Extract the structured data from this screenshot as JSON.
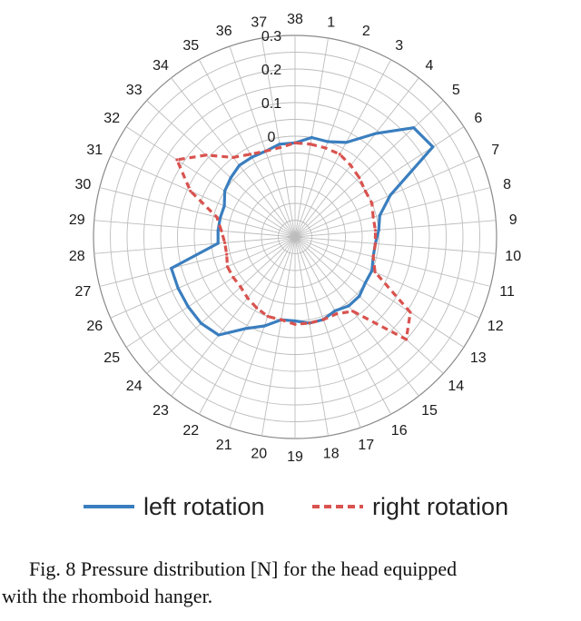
{
  "chart_data": {
    "type": "radar",
    "categories": [
      "1",
      "2",
      "3",
      "4",
      "5",
      "6",
      "7",
      "8",
      "9",
      "10",
      "11",
      "12",
      "13",
      "14",
      "15",
      "16",
      "17",
      "18",
      "19",
      "20",
      "21",
      "22",
      "23",
      "24",
      "25",
      "26",
      "27",
      "28",
      "29",
      "30",
      "31",
      "32",
      "33",
      "34",
      "35",
      "36",
      "37",
      "38"
    ],
    "radial_ticks": [
      "0",
      "0.1",
      "0.2",
      "0.3"
    ],
    "rlim": [
      -0.3,
      0.3
    ],
    "grid": true,
    "legend_position": "bottom",
    "series": [
      {
        "name": "left rotation",
        "color": "#3a7ebf",
        "dash": "solid",
        "values": [
          0.0,
          0.0,
          0.02,
          0.09,
          0.18,
          0.19,
          0.01,
          -0.04,
          -0.05,
          -0.06,
          -0.06,
          -0.05,
          -0.05,
          -0.04,
          -0.04,
          -0.05,
          -0.04,
          -0.04,
          -0.05,
          -0.05,
          -0.02,
          0.01,
          0.07,
          0.08,
          0.08,
          0.08,
          0.08,
          -0.07,
          -0.07,
          -0.07,
          -0.07,
          -0.05,
          -0.04,
          -0.03,
          -0.03,
          -0.03,
          -0.02,
          -0.02
        ]
      },
      {
        "name": "right rotation",
        "color": "#d9534f",
        "dash": "dashed",
        "values": [
          -0.02,
          -0.02,
          -0.02,
          -0.03,
          -0.04,
          -0.05,
          -0.05,
          -0.06,
          -0.06,
          -0.06,
          -0.06,
          -0.04,
          0.11,
          0.15,
          -0.02,
          -0.04,
          -0.04,
          -0.04,
          -0.04,
          -0.05,
          -0.05,
          -0.06,
          -0.07,
          -0.08,
          -0.08,
          -0.08,
          -0.09,
          -0.09,
          -0.08,
          -0.06,
          0.04,
          0.12,
          0.06,
          0.0,
          -0.02,
          -0.03,
          -0.03,
          -0.02
        ]
      }
    ]
  },
  "caption": {
    "line1": "Fig. 8 Pressure distribution [N] for the head equipped",
    "line2": "with the rhomboid hanger."
  }
}
